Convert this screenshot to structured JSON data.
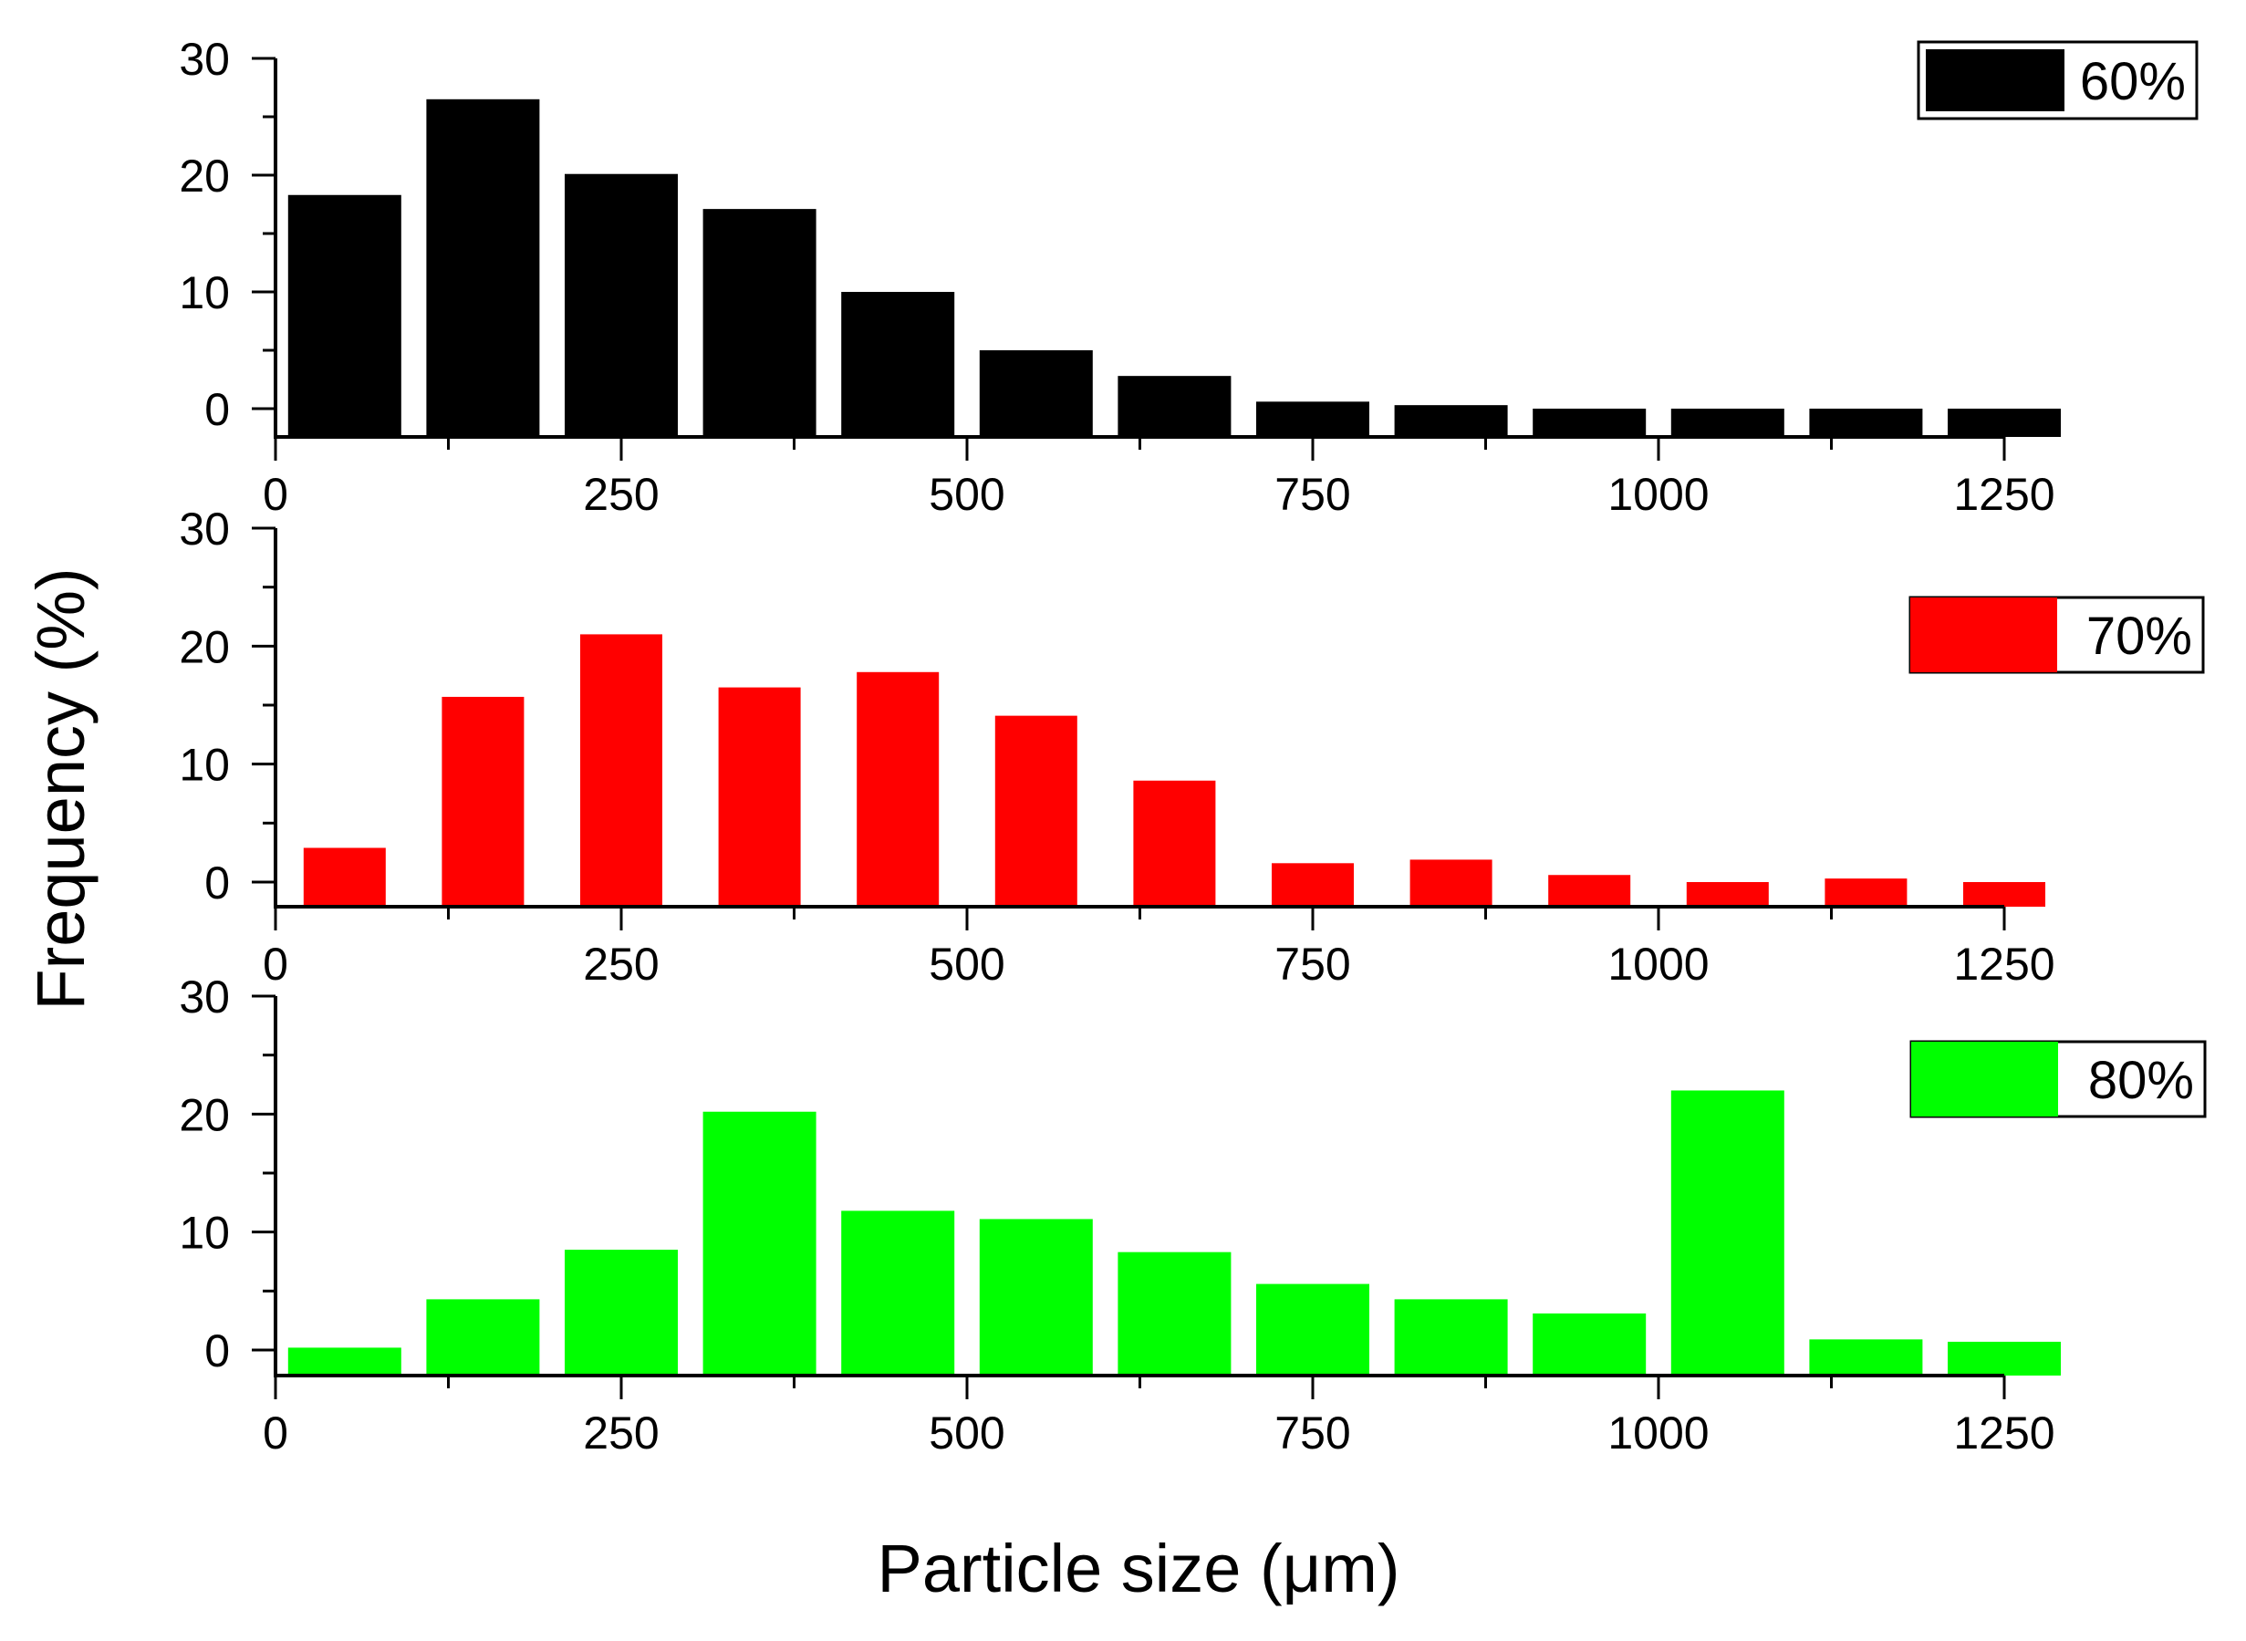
{
  "chart_data": [
    {
      "type": "bar",
      "series": [
        {
          "name": "60%",
          "color": "#000000",
          "x": [
            50,
            150,
            250,
            350,
            450,
            550,
            650,
            750,
            850,
            950,
            1050,
            1150,
            1250
          ],
          "values": [
            18.3,
            26.5,
            20.1,
            17.1,
            10.0,
            5.0,
            2.8,
            0.6,
            0.3,
            0,
            0,
            0,
            0
          ]
        }
      ],
      "xlim": [
        0,
        1250
      ],
      "ylim": [
        -2,
        30
      ],
      "xticks": [
        "0",
        "250",
        "500",
        "750",
        "1000",
        "1250"
      ],
      "yticks": [
        "0",
        "10",
        "20",
        "30"
      ],
      "legend": {
        "label": "60%",
        "position": "top-right"
      }
    },
    {
      "type": "bar",
      "series": [
        {
          "name": "70%",
          "color": "#ff0000",
          "x": [
            50,
            150,
            250,
            350,
            450,
            550,
            650,
            750,
            850,
            950,
            1050,
            1150,
            1250
          ],
          "values": [
            2.9,
            15.7,
            21.0,
            16.5,
            17.8,
            14.1,
            8.6,
            1.6,
            1.9,
            0.6,
            0,
            0.3,
            0
          ]
        }
      ],
      "xlim": [
        0,
        1250
      ],
      "ylim": [
        -2,
        30
      ],
      "xticks": [
        "0",
        "250",
        "500",
        "750",
        "1000",
        "1250"
      ],
      "yticks": [
        "0",
        "10",
        "20",
        "30"
      ],
      "legend": {
        "label": "70%",
        "position": "right"
      }
    },
    {
      "type": "bar",
      "series": [
        {
          "name": "80%",
          "color": "#00ff00",
          "x": [
            50,
            150,
            250,
            350,
            450,
            550,
            650,
            750,
            850,
            950,
            1050,
            1150,
            1250
          ],
          "values": [
            0.2,
            4.3,
            8.5,
            20.2,
            11.8,
            11.1,
            8.3,
            5.6,
            4.3,
            3.1,
            22.0,
            0.9,
            0.7
          ]
        }
      ],
      "xlim": [
        0,
        1250
      ],
      "ylim": [
        -2,
        30
      ],
      "xticks": [
        "0",
        "250",
        "500",
        "750",
        "1000",
        "1250"
      ],
      "yticks": [
        "0",
        "10",
        "20",
        "30"
      ],
      "legend": {
        "label": "80%",
        "position": "right"
      }
    }
  ],
  "xlabel": "Particle size (μm)",
  "ylabel": "Frequency (%)"
}
